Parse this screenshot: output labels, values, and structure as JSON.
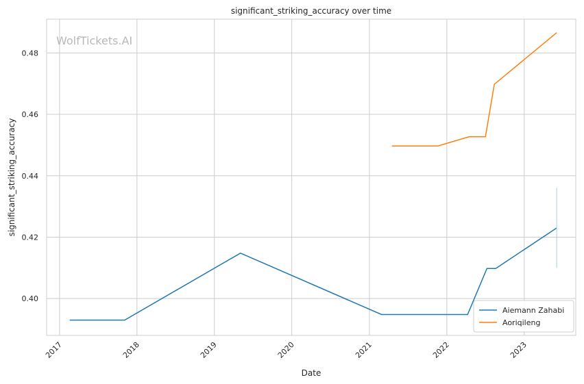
{
  "chart_data": {
    "type": "line",
    "title": "significant_striking_accuracy over time",
    "xlabel": "Date",
    "ylabel": "significant_striking_accuracy",
    "watermark": "WolfTickets.AI",
    "xlim": [
      "2016-11-01",
      "2023-09-01"
    ],
    "ylim": [
      0.388,
      0.491
    ],
    "x_ticks": [
      "2017",
      "2018",
      "2019",
      "2020",
      "2021",
      "2022",
      "2023"
    ],
    "y_ticks": [
      "0.40",
      "0.42",
      "0.44",
      "0.46",
      "0.48"
    ],
    "grid": true,
    "legend_position": "lower-right",
    "series": [
      {
        "name": "Aiemann Zahabi",
        "color": "#1f77b4",
        "points": [
          [
            "2017-02-18",
            0.393
          ],
          [
            "2017-11-04",
            0.393
          ],
          [
            "2019-05-04",
            0.4148
          ],
          [
            "2021-02-27",
            0.3948
          ],
          [
            "2022-04-09",
            0.3948
          ],
          [
            "2022-07-09",
            0.4098
          ],
          [
            "2022-08-20",
            0.4098
          ],
          [
            "2023-06-03",
            0.423
          ]
        ],
        "error_bar": {
          "x": "2023-06-03",
          "low": 0.41,
          "high": 0.436
        }
      },
      {
        "name": "Aoriqileng",
        "color": "#ff7f0e",
        "points": [
          [
            "2021-04-17",
            0.4497
          ],
          [
            "2021-11-20",
            0.4497
          ],
          [
            "2022-04-16",
            0.4527
          ],
          [
            "2022-07-02",
            0.4527
          ],
          [
            "2022-08-13",
            0.4698
          ],
          [
            "2023-06-03",
            0.4866
          ]
        ]
      }
    ]
  }
}
